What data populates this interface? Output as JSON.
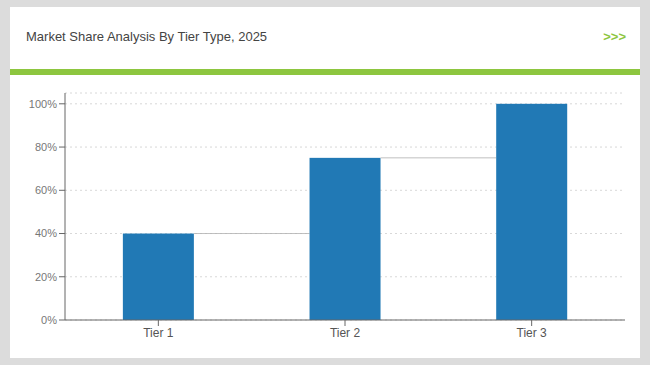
{
  "chart_data": {
    "type": "bar",
    "title": "Market Share Analysis By Tier Type, 2025",
    "annotations": [
      ">>>"
    ],
    "categories": [
      "Tier 1",
      "Tier 2",
      "Tier 3"
    ],
    "values": [
      40,
      75,
      100
    ],
    "color": "#2179b5",
    "ylim": [
      0,
      105
    ],
    "yticks": [
      {
        "value": 0,
        "label": "0%"
      },
      {
        "value": 20,
        "label": "20%"
      },
      {
        "value": 40,
        "label": "40%"
      },
      {
        "value": 60,
        "label": "60%"
      },
      {
        "value": 80,
        "label": "80%"
      },
      {
        "value": 100,
        "label": "100%"
      }
    ],
    "grid": true
  }
}
